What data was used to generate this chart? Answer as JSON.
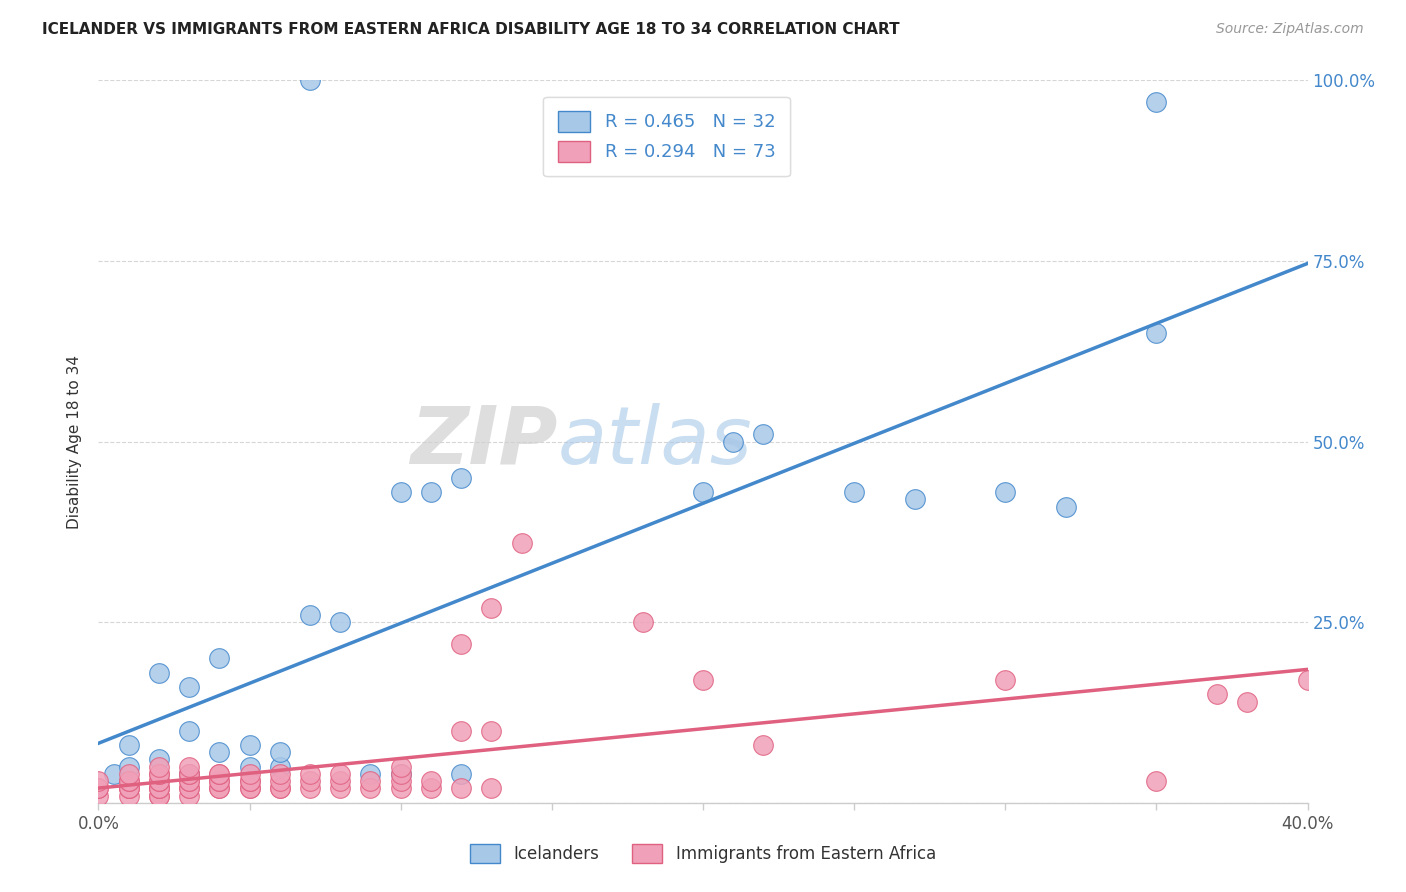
{
  "title": "ICELANDER VS IMMIGRANTS FROM EASTERN AFRICA DISABILITY AGE 18 TO 34 CORRELATION CHART",
  "source": "Source: ZipAtlas.com",
  "ylabel": "Disability Age 18 to 34",
  "xlim": [
    0.0,
    0.4
  ],
  "ylim": [
    0.0,
    1.0
  ],
  "blue_R": 0.465,
  "blue_N": 32,
  "pink_R": 0.294,
  "pink_N": 73,
  "blue_color": "#a8c8e8",
  "pink_color": "#f0a0b8",
  "blue_line_color": "#4488cc",
  "pink_line_color": "#e06080",
  "legend_label_blue_bottom": "Icelanders",
  "legend_label_pink_bottom": "Immigrants from Eastern Africa",
  "watermark": "ZIPatlas",
  "blue_scatter_x": [
    0.005,
    0.01,
    0.01,
    0.02,
    0.02,
    0.03,
    0.03,
    0.04,
    0.04,
    0.05,
    0.05,
    0.06,
    0.06,
    0.07,
    0.08,
    0.09,
    0.1,
    0.12,
    0.2,
    0.22,
    0.25,
    0.27,
    0.3,
    0.32,
    0.1,
    0.11,
    0.12,
    0.21,
    0.35,
    0.35,
    0.07,
    0.03
  ],
  "blue_scatter_y": [
    0.04,
    0.05,
    0.08,
    0.06,
    0.18,
    0.1,
    0.16,
    0.07,
    0.2,
    0.05,
    0.08,
    0.05,
    0.07,
    0.26,
    0.25,
    0.04,
    0.04,
    0.04,
    0.43,
    0.51,
    0.43,
    0.42,
    0.43,
    0.41,
    0.43,
    0.43,
    0.45,
    0.5,
    0.65,
    0.97,
    1.0,
    0.04
  ],
  "pink_scatter_x": [
    0.0,
    0.0,
    0.0,
    0.0,
    0.01,
    0.01,
    0.01,
    0.01,
    0.01,
    0.01,
    0.01,
    0.02,
    0.02,
    0.02,
    0.02,
    0.02,
    0.02,
    0.02,
    0.02,
    0.02,
    0.02,
    0.03,
    0.03,
    0.03,
    0.03,
    0.03,
    0.03,
    0.03,
    0.03,
    0.04,
    0.04,
    0.04,
    0.04,
    0.04,
    0.04,
    0.05,
    0.05,
    0.05,
    0.05,
    0.05,
    0.06,
    0.06,
    0.06,
    0.06,
    0.07,
    0.07,
    0.07,
    0.08,
    0.08,
    0.08,
    0.09,
    0.09,
    0.1,
    0.1,
    0.1,
    0.1,
    0.11,
    0.11,
    0.12,
    0.12,
    0.12,
    0.13,
    0.13,
    0.13,
    0.14,
    0.18,
    0.2,
    0.22,
    0.3,
    0.35,
    0.37,
    0.38,
    0.4
  ],
  "pink_scatter_y": [
    0.01,
    0.02,
    0.02,
    0.03,
    0.01,
    0.02,
    0.02,
    0.02,
    0.03,
    0.03,
    0.04,
    0.01,
    0.01,
    0.02,
    0.02,
    0.02,
    0.03,
    0.03,
    0.04,
    0.04,
    0.05,
    0.01,
    0.02,
    0.02,
    0.03,
    0.03,
    0.04,
    0.04,
    0.05,
    0.02,
    0.02,
    0.03,
    0.03,
    0.04,
    0.04,
    0.02,
    0.02,
    0.03,
    0.03,
    0.04,
    0.02,
    0.02,
    0.03,
    0.04,
    0.02,
    0.03,
    0.04,
    0.02,
    0.03,
    0.04,
    0.02,
    0.03,
    0.02,
    0.03,
    0.04,
    0.05,
    0.02,
    0.03,
    0.02,
    0.1,
    0.22,
    0.02,
    0.1,
    0.27,
    0.36,
    0.25,
    0.17,
    0.08,
    0.17,
    0.03,
    0.15,
    0.14,
    0.17
  ]
}
